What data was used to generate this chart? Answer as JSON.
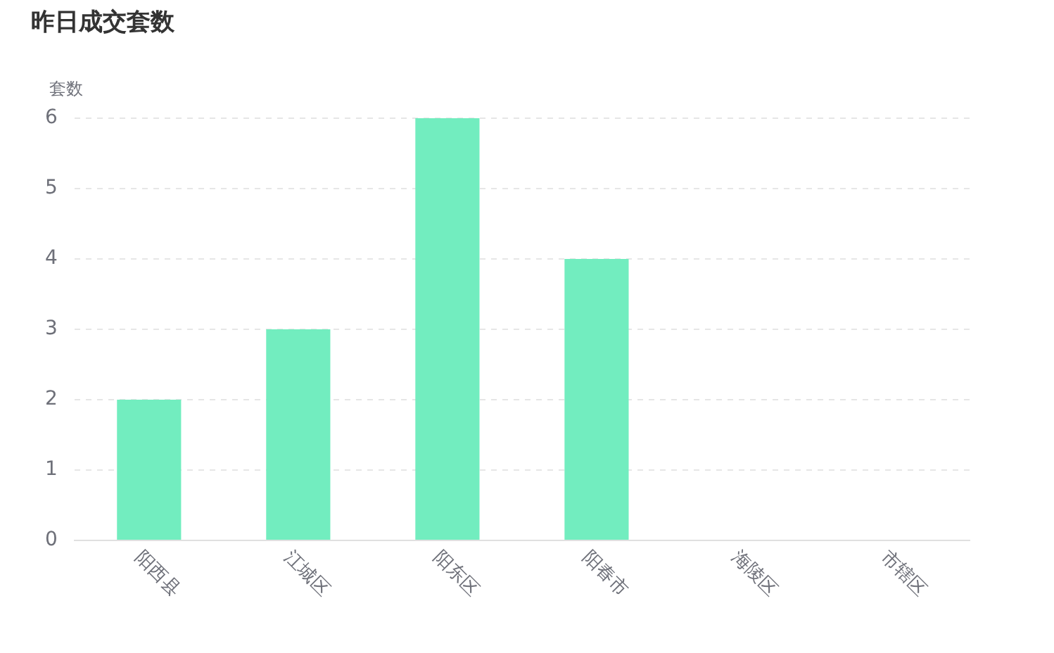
{
  "chart_data": {
    "type": "bar",
    "title": "昨日成交套数",
    "ylabel": "套数",
    "categories": [
      "阳西县",
      "江城区",
      "阳东区",
      "阳春市",
      "海陵区",
      "市辖区"
    ],
    "values": [
      2,
      3,
      6,
      4,
      0,
      0
    ],
    "color": "#72edbf",
    "ylim": [
      0,
      6
    ],
    "yticks": [
      0,
      1,
      2,
      3,
      4,
      5,
      6
    ],
    "grid": "y"
  }
}
